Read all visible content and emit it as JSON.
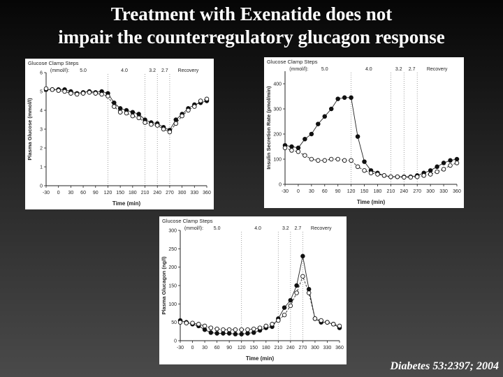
{
  "slide": {
    "title_line1": "Treatment with Exenatide does not",
    "title_line2": "impair the counterregulatory glucagon response",
    "citation": "Diabetes 53:2397; 2004"
  },
  "chart_data": [
    {
      "type": "line",
      "id": "glucose",
      "title": "",
      "header": "Glucose Clamp Steps",
      "step_label": "(mmol/l):",
      "steps": [
        "5.0",
        "4.0",
        "3.2",
        "2.7",
        "Recovery"
      ],
      "step_positions": [
        60,
        160,
        228,
        258,
        315
      ],
      "step_dividers": [
        120,
        210,
        240,
        270
      ],
      "xlabel": "Time (min)",
      "ylabel": "Plasma Glucose (mmol/l)",
      "xlim": [
        -30,
        360
      ],
      "ylim": [
        0,
        6
      ],
      "x_ticks": [
        -30,
        0,
        30,
        60,
        90,
        120,
        150,
        180,
        210,
        240,
        270,
        300,
        330,
        360
      ],
      "y_ticks": [
        0,
        1,
        2,
        3,
        4,
        5,
        6
      ],
      "series": [
        {
          "marker": "filled",
          "x": [
            -30,
            -15,
            0,
            15,
            30,
            45,
            60,
            75,
            90,
            105,
            120,
            135,
            150,
            165,
            180,
            195,
            210,
            225,
            240,
            255,
            270,
            285,
            300,
            315,
            330,
            345,
            360
          ],
          "y": [
            5.1,
            5.1,
            5.1,
            5.1,
            5.0,
            4.9,
            4.95,
            5.0,
            4.95,
            5.0,
            4.9,
            4.4,
            4.1,
            4.0,
            3.9,
            3.8,
            3.5,
            3.35,
            3.3,
            3.1,
            2.95,
            3.5,
            3.8,
            4.1,
            4.3,
            4.4,
            4.5
          ]
        },
        {
          "marker": "open",
          "x": [
            -30,
            -15,
            0,
            15,
            30,
            45,
            60,
            75,
            90,
            105,
            120,
            135,
            150,
            165,
            180,
            195,
            210,
            225,
            240,
            255,
            270,
            285,
            300,
            315,
            330,
            345,
            360
          ],
          "y": [
            5.15,
            5.1,
            5.05,
            5.0,
            4.9,
            4.85,
            4.9,
            4.95,
            4.9,
            4.85,
            4.75,
            4.2,
            3.9,
            3.85,
            3.7,
            3.6,
            3.35,
            3.25,
            3.2,
            3.0,
            2.85,
            3.3,
            3.7,
            4.0,
            4.2,
            4.5,
            4.6
          ]
        }
      ]
    },
    {
      "type": "line",
      "id": "insulin",
      "title": "",
      "header": "Glucose Clamp Steps",
      "step_label": "(mmol/l):",
      "steps": [
        "5.0",
        "4.0",
        "3.2",
        "2.7",
        "Recovery"
      ],
      "step_positions": [
        60,
        160,
        228,
        258,
        315
      ],
      "step_dividers": [
        120,
        210,
        240,
        270
      ],
      "xlabel": "Time (min)",
      "ylabel": "Insulin Secretion Rate (pmol/min)",
      "xlim": [
        -30,
        360
      ],
      "ylim": [
        0,
        450
      ],
      "x_ticks": [
        -30,
        0,
        30,
        60,
        90,
        120,
        150,
        180,
        210,
        240,
        270,
        300,
        330,
        360
      ],
      "y_ticks": [
        0,
        100,
        200,
        300,
        400
      ],
      "series": [
        {
          "marker": "filled",
          "x": [
            -30,
            -15,
            0,
            15,
            30,
            45,
            60,
            75,
            90,
            105,
            120,
            135,
            150,
            165,
            180,
            195,
            210,
            225,
            240,
            255,
            270,
            285,
            300,
            315,
            330,
            345,
            360
          ],
          "y": [
            155,
            150,
            145,
            180,
            200,
            240,
            270,
            300,
            340,
            345,
            345,
            190,
            90,
            55,
            45,
            35,
            30,
            30,
            30,
            30,
            35,
            45,
            55,
            70,
            85,
            95,
            100
          ]
        },
        {
          "marker": "open",
          "x": [
            -30,
            -15,
            0,
            15,
            30,
            45,
            60,
            75,
            90,
            105,
            120,
            135,
            150,
            165,
            180,
            195,
            210,
            225,
            240,
            255,
            270,
            285,
            300,
            315,
            330,
            345,
            360
          ],
          "y": [
            145,
            135,
            130,
            115,
            100,
            95,
            95,
            100,
            100,
            95,
            95,
            70,
            55,
            45,
            40,
            35,
            30,
            30,
            28,
            28,
            30,
            35,
            40,
            50,
            60,
            75,
            85
          ]
        }
      ]
    },
    {
      "type": "line",
      "id": "glucagon",
      "title": "",
      "header": "Glucose Clamp Steps",
      "step_label": "(mmol/l):",
      "steps": [
        "5.0",
        "4.0",
        "3.2",
        "2.7",
        "Recovery"
      ],
      "step_positions": [
        60,
        160,
        228,
        258,
        315
      ],
      "step_dividers": [
        120,
        210,
        240,
        270
      ],
      "xlabel": "Time (min)",
      "ylabel": "Plasma Glucagon (ng/l)",
      "xlim": [
        -30,
        360
      ],
      "ylim": [
        0,
        300
      ],
      "x_ticks": [
        -30,
        0,
        30,
        60,
        90,
        120,
        150,
        180,
        210,
        240,
        270,
        300,
        330,
        360
      ],
      "y_ticks": [
        0,
        50,
        100,
        150,
        200,
        250,
        300
      ],
      "series": [
        {
          "marker": "filled",
          "x": [
            -30,
            -15,
            0,
            15,
            30,
            45,
            60,
            75,
            90,
            105,
            120,
            135,
            150,
            165,
            180,
            195,
            210,
            225,
            240,
            255,
            270,
            285,
            300,
            315,
            330,
            345,
            360
          ],
          "y": [
            55,
            50,
            45,
            40,
            30,
            22,
            20,
            20,
            20,
            18,
            18,
            20,
            22,
            28,
            35,
            38,
            60,
            90,
            110,
            150,
            230,
            140,
            60,
            50,
            50,
            45,
            35
          ]
        },
        {
          "marker": "open",
          "x": [
            -30,
            -15,
            0,
            15,
            30,
            45,
            60,
            75,
            90,
            105,
            120,
            135,
            150,
            165,
            180,
            195,
            210,
            225,
            240,
            255,
            270,
            285,
            300,
            315,
            330,
            345,
            360
          ],
          "y": [
            50,
            48,
            48,
            45,
            40,
            35,
            32,
            30,
            30,
            30,
            30,
            30,
            32,
            35,
            40,
            45,
            55,
            70,
            95,
            130,
            175,
            130,
            60,
            55,
            50,
            45,
            40
          ]
        }
      ]
    }
  ]
}
